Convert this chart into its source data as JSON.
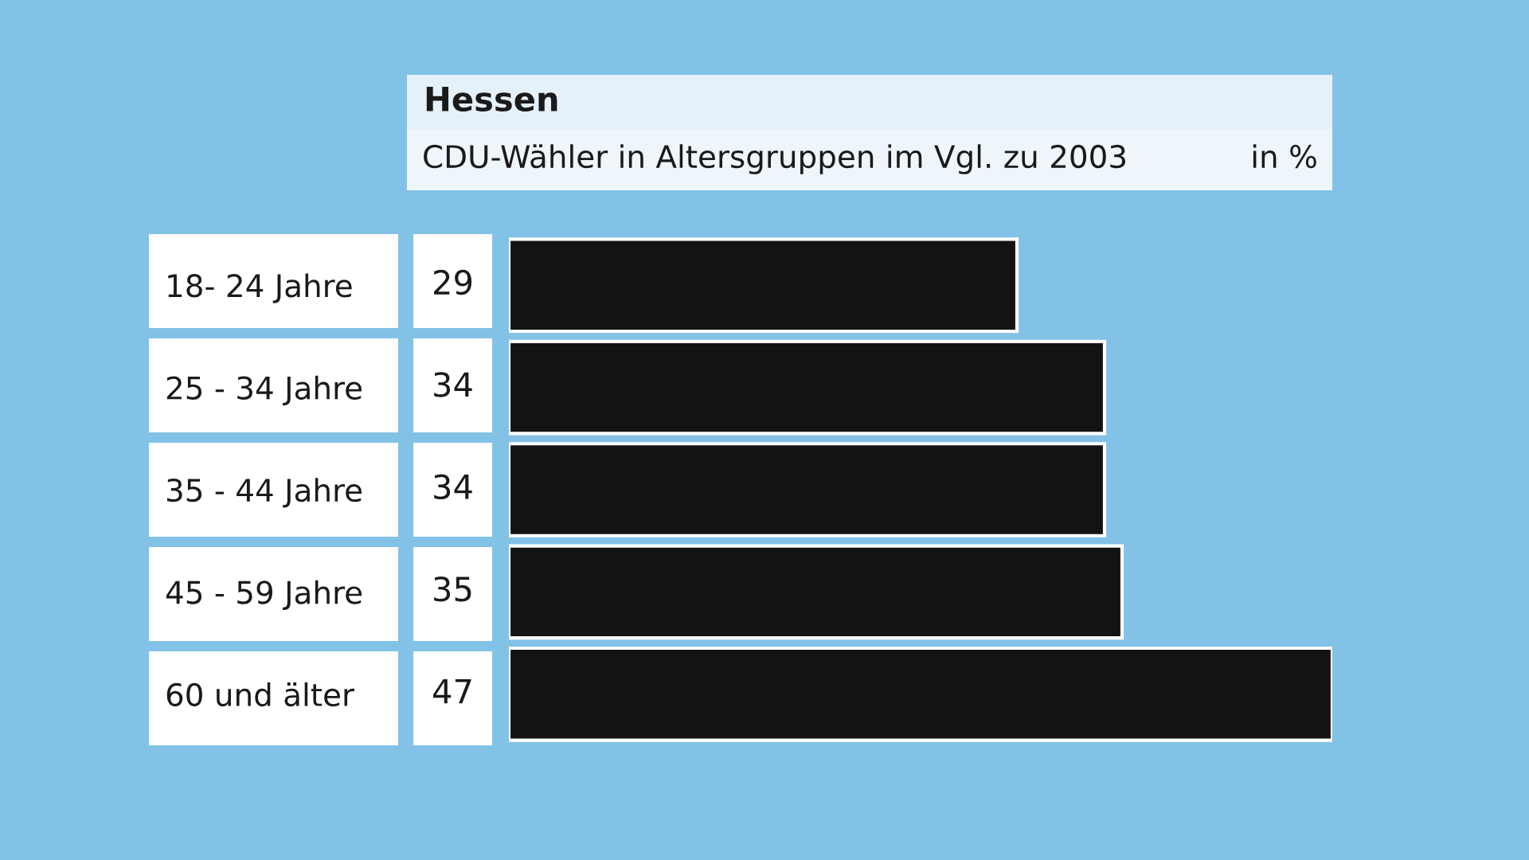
{
  "chart_data": {
    "type": "bar",
    "orientation": "horizontal",
    "title": "Hessen",
    "subtitle": "CDU-Wähler in Altersgruppen im Vgl. zu 2003",
    "annotations": [
      "in %"
    ],
    "categories": [
      "18- 24 Jahre",
      "25 - 34 Jahre",
      "35 - 44 Jahre",
      "45 - 59 Jahre",
      "60 und älter"
    ],
    "values": [
      29,
      34,
      34,
      35,
      47
    ],
    "color": "#131313",
    "data_labels": true,
    "grid": false,
    "legend": false
  }
}
